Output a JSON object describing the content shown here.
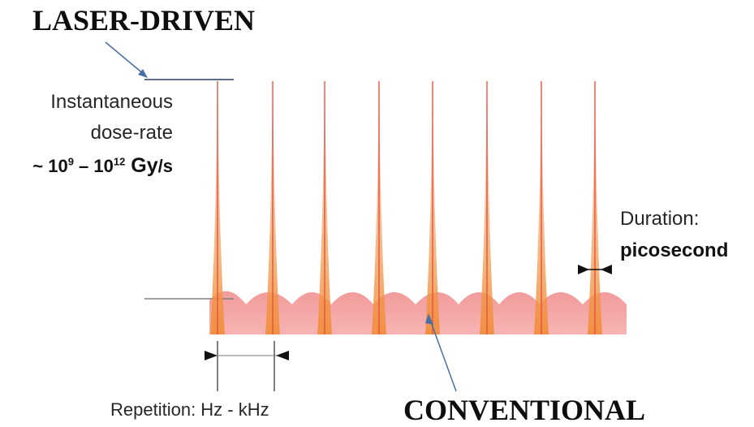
{
  "labels": {
    "laser_driven": "LASER-DRIVEN",
    "conventional": "CONVENTIONAL",
    "dose_line1": "Instantaneous",
    "dose_line2": "dose-rate",
    "dose_prefix": "~ 10",
    "dose_exp1": "9",
    "dose_dash": " – 10",
    "dose_exp2": "12",
    "dose_unit_gy": " Gy",
    "dose_unit_s": "/s",
    "duration_label": "Duration:",
    "duration_value": "picosecond",
    "repetition": "Repetition: Hz - kHz"
  },
  "colors": {
    "pulse_core": "#e8503a",
    "pulse_glow": "#f7b37a",
    "conventional_band": "#f4a6a6",
    "arrow": "#4a6fa5",
    "marker": "#111111"
  }
}
